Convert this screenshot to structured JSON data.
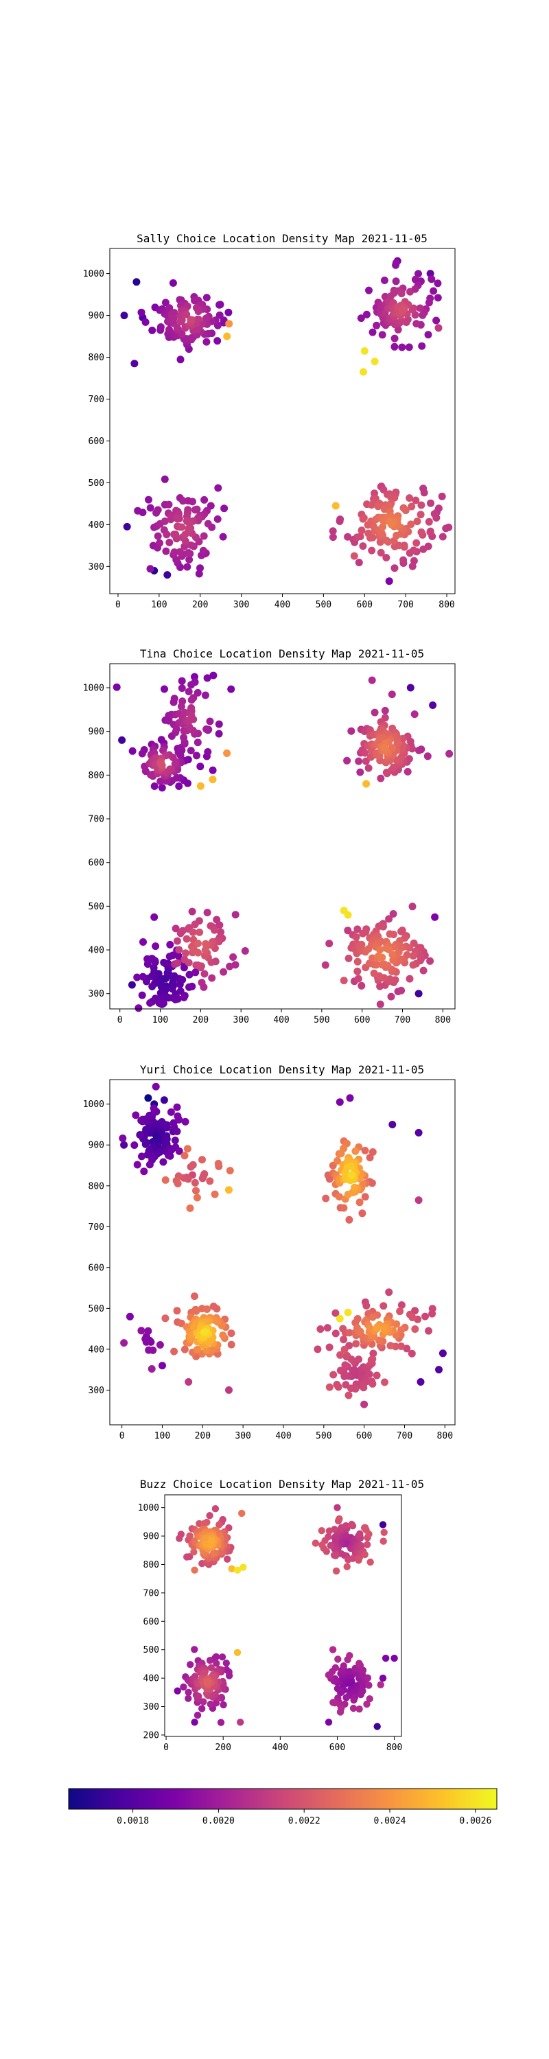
{
  "chart_data": [
    {
      "type": "scatter",
      "title": "Sally Choice Location Density Map 2021-11-05",
      "xlabel": "",
      "ylabel": "",
      "xlim": [
        -20,
        820
      ],
      "ylim": [
        235,
        1060
      ],
      "xticks": [
        0,
        100,
        200,
        300,
        400,
        500,
        600,
        700,
        800
      ],
      "yticks": [
        300,
        400,
        500,
        600,
        700,
        800,
        900,
        1000
      ],
      "grid": false,
      "clusters": [
        {
          "cx": 175,
          "cy": 890,
          "sx": 42,
          "sy": 38,
          "n": 110,
          "core": 0.00215,
          "edge": 0.0019,
          "seed": 11
        },
        {
          "cx": 690,
          "cy": 915,
          "sx": 38,
          "sy": 40,
          "n": 95,
          "core": 0.0022,
          "edge": 0.00195,
          "seed": 12
        },
        {
          "cx": 160,
          "cy": 390,
          "sx": 45,
          "sy": 45,
          "n": 100,
          "core": 0.00215,
          "edge": 0.00195,
          "seed": 13
        },
        {
          "cx": 665,
          "cy": 405,
          "sx": 52,
          "sy": 45,
          "n": 130,
          "core": 0.00235,
          "edge": 0.0021,
          "seed": 14
        }
      ],
      "points": [
        {
          "x": 15,
          "y": 900,
          "v": 0.00175
        },
        {
          "x": 45,
          "y": 980,
          "v": 0.0017
        },
        {
          "x": 40,
          "y": 785,
          "v": 0.0018
        },
        {
          "x": 60,
          "y": 895,
          "v": 0.0018
        },
        {
          "x": 88,
          "y": 290,
          "v": 0.0017
        },
        {
          "x": 120,
          "y": 280,
          "v": 0.00175
        },
        {
          "x": 22,
          "y": 395,
          "v": 0.00175
        },
        {
          "x": 600,
          "y": 815,
          "v": 0.0026
        },
        {
          "x": 597,
          "y": 765,
          "v": 0.0026
        },
        {
          "x": 625,
          "y": 790,
          "v": 0.0026
        },
        {
          "x": 680,
          "y": 1030,
          "v": 0.0019
        },
        {
          "x": 760,
          "y": 1000,
          "v": 0.00185
        },
        {
          "x": 660,
          "y": 265,
          "v": 0.0019
        },
        {
          "x": 575,
          "y": 325,
          "v": 0.0022
        },
        {
          "x": 530,
          "y": 445,
          "v": 0.0025
        },
        {
          "x": 270,
          "y": 880,
          "v": 0.0024
        },
        {
          "x": 265,
          "y": 850,
          "v": 0.0025
        },
        {
          "x": 780,
          "y": 870,
          "v": 0.0021
        }
      ]
    },
    {
      "type": "scatter",
      "title": "Tina Choice Location Density Map 2021-11-05",
      "xlabel": "",
      "ylabel": "",
      "xlim": [
        -25,
        830
      ],
      "ylim": [
        265,
        1055
      ],
      "xticks": [
        0,
        100,
        200,
        300,
        400,
        500,
        600,
        700,
        800
      ],
      "yticks": [
        300,
        400,
        500,
        600,
        700,
        800,
        900,
        1000
      ],
      "grid": false,
      "clusters": [
        {
          "cx": 105,
          "cy": 825,
          "sx": 30,
          "sy": 25,
          "n": 70,
          "core": 0.0022,
          "edge": 0.0019,
          "seed": 21
        },
        {
          "cx": 175,
          "cy": 930,
          "sx": 40,
          "sy": 50,
          "n": 70,
          "core": 0.0021,
          "edge": 0.0019,
          "seed": 22
        },
        {
          "cx": 660,
          "cy": 865,
          "sx": 38,
          "sy": 40,
          "n": 110,
          "core": 0.00235,
          "edge": 0.00205,
          "seed": 23
        },
        {
          "cx": 110,
          "cy": 330,
          "sx": 35,
          "sy": 35,
          "n": 85,
          "core": 0.00175,
          "edge": 0.0019,
          "seed": 24
        },
        {
          "cx": 200,
          "cy": 410,
          "sx": 40,
          "sy": 40,
          "n": 60,
          "core": 0.00225,
          "edge": 0.00205,
          "seed": 25
        },
        {
          "cx": 655,
          "cy": 390,
          "sx": 55,
          "sy": 40,
          "n": 130,
          "core": 0.00235,
          "edge": 0.0021,
          "seed": 26
        }
      ],
      "points": [
        {
          "x": 5,
          "y": 880,
          "v": 0.00175
        },
        {
          "x": 30,
          "y": 320,
          "v": 0.00175
        },
        {
          "x": 85,
          "y": 475,
          "v": 0.0019
        },
        {
          "x": 200,
          "y": 775,
          "v": 0.0025
        },
        {
          "x": 230,
          "y": 790,
          "v": 0.0025
        },
        {
          "x": 265,
          "y": 850,
          "v": 0.0024
        },
        {
          "x": 555,
          "y": 490,
          "v": 0.0026
        },
        {
          "x": 565,
          "y": 480,
          "v": 0.0026
        },
        {
          "x": 555,
          "y": 330,
          "v": 0.0022
        },
        {
          "x": 740,
          "y": 300,
          "v": 0.00175
        },
        {
          "x": 780,
          "y": 475,
          "v": 0.0019
        },
        {
          "x": 775,
          "y": 960,
          "v": 0.0018
        },
        {
          "x": 720,
          "y": 1000,
          "v": 0.0018
        },
        {
          "x": 610,
          "y": 780,
          "v": 0.0025
        },
        {
          "x": 185,
          "y": 1025,
          "v": 0.0019
        }
      ]
    },
    {
      "type": "scatter",
      "title": "Yuri Choice Location Density Map 2021-11-05",
      "xlabel": "",
      "ylabel": "",
      "xlim": [
        -30,
        825
      ],
      "ylim": [
        215,
        1060
      ],
      "xticks": [
        0,
        100,
        200,
        300,
        400,
        500,
        600,
        700,
        800
      ],
      "yticks": [
        300,
        400,
        500,
        600,
        700,
        800,
        900,
        1000
      ],
      "grid": false,
      "clusters": [
        {
          "cx": 85,
          "cy": 920,
          "sx": 30,
          "sy": 35,
          "n": 100,
          "core": 0.0017,
          "edge": 0.0019,
          "seed": 31
        },
        {
          "cx": 180,
          "cy": 830,
          "sx": 40,
          "sy": 25,
          "n": 25,
          "core": 0.00215,
          "edge": 0.0023,
          "seed": 32
        },
        {
          "cx": 565,
          "cy": 830,
          "sx": 22,
          "sy": 45,
          "n": 80,
          "core": 0.0026,
          "edge": 0.00225,
          "seed": 33
        },
        {
          "cx": 70,
          "cy": 425,
          "sx": 25,
          "sy": 30,
          "n": 12,
          "core": 0.0019,
          "edge": 0.002,
          "seed": 34
        },
        {
          "cx": 205,
          "cy": 440,
          "sx": 30,
          "sy": 30,
          "n": 90,
          "core": 0.0026,
          "edge": 0.00225,
          "seed": 35
        },
        {
          "cx": 640,
          "cy": 450,
          "sx": 50,
          "sy": 28,
          "n": 90,
          "core": 0.00245,
          "edge": 0.00215,
          "seed": 36
        },
        {
          "cx": 580,
          "cy": 340,
          "sx": 35,
          "sy": 30,
          "n": 60,
          "core": 0.0021,
          "edge": 0.0022,
          "seed": 37
        }
      ],
      "points": [
        {
          "x": 5,
          "y": 900,
          "v": 0.0018
        },
        {
          "x": 65,
          "y": 1015,
          "v": 0.00165
        },
        {
          "x": 80,
          "y": 1000,
          "v": 0.0017
        },
        {
          "x": 105,
          "y": 1010,
          "v": 0.00175
        },
        {
          "x": 20,
          "y": 480,
          "v": 0.0019
        },
        {
          "x": 100,
          "y": 360,
          "v": 0.0019
        },
        {
          "x": 265,
          "y": 790,
          "v": 0.0025
        },
        {
          "x": 540,
          "y": 1005,
          "v": 0.0019
        },
        {
          "x": 565,
          "y": 1015,
          "v": 0.0019
        },
        {
          "x": 670,
          "y": 950,
          "v": 0.0018
        },
        {
          "x": 735,
          "y": 930,
          "v": 0.0018
        },
        {
          "x": 735,
          "y": 765,
          "v": 0.0021
        },
        {
          "x": 560,
          "y": 490,
          "v": 0.0026
        },
        {
          "x": 540,
          "y": 475,
          "v": 0.0026
        },
        {
          "x": 795,
          "y": 390,
          "v": 0.0018
        },
        {
          "x": 785,
          "y": 350,
          "v": 0.0018
        },
        {
          "x": 740,
          "y": 320,
          "v": 0.0018
        },
        {
          "x": 600,
          "y": 265,
          "v": 0.0021
        },
        {
          "x": 265,
          "y": 300,
          "v": 0.0021
        },
        {
          "x": 165,
          "y": 320,
          "v": 0.0021
        }
      ]
    },
    {
      "type": "scatter",
      "title": "Buzz Choice Location Density Map 2021-11-05",
      "xlabel": "",
      "ylabel": "",
      "xlim": [
        -5,
        825
      ],
      "ylim": [
        195,
        1045
      ],
      "xticks": [
        0,
        200,
        400,
        600,
        800
      ],
      "yticks": [
        200,
        300,
        400,
        500,
        600,
        700,
        800,
        900,
        1000
      ],
      "grid": false,
      "clusters": [
        {
          "cx": 150,
          "cy": 880,
          "sx": 38,
          "sy": 38,
          "n": 110,
          "core": 0.0025,
          "edge": 0.00215,
          "seed": 41
        },
        {
          "cx": 630,
          "cy": 880,
          "sx": 40,
          "sy": 38,
          "n": 100,
          "core": 0.002,
          "edge": 0.0022,
          "seed": 42
        },
        {
          "cx": 145,
          "cy": 385,
          "sx": 35,
          "sy": 40,
          "n": 100,
          "core": 0.00225,
          "edge": 0.002,
          "seed": 43
        },
        {
          "cx": 640,
          "cy": 380,
          "sx": 40,
          "sy": 40,
          "n": 90,
          "core": 0.0019,
          "edge": 0.00205,
          "seed": 44
        }
      ],
      "points": [
        {
          "x": 265,
          "y": 980,
          "v": 0.0023
        },
        {
          "x": 250,
          "y": 780,
          "v": 0.0026
        },
        {
          "x": 270,
          "y": 790,
          "v": 0.0026
        },
        {
          "x": 230,
          "y": 785,
          "v": 0.0025
        },
        {
          "x": 100,
          "y": 780,
          "v": 0.0023
        },
        {
          "x": 600,
          "y": 1000,
          "v": 0.0021
        },
        {
          "x": 760,
          "y": 940,
          "v": 0.00175
        },
        {
          "x": 800,
          "y": 470,
          "v": 0.0019
        },
        {
          "x": 770,
          "y": 470,
          "v": 0.0019
        },
        {
          "x": 760,
          "y": 400,
          "v": 0.0019
        },
        {
          "x": 740,
          "y": 230,
          "v": 0.00175
        },
        {
          "x": 570,
          "y": 245,
          "v": 0.0019
        },
        {
          "x": 250,
          "y": 490,
          "v": 0.0025
        },
        {
          "x": 260,
          "y": 245,
          "v": 0.0021
        },
        {
          "x": 100,
          "y": 245,
          "v": 0.0019
        },
        {
          "x": 40,
          "y": 355,
          "v": 0.0019
        }
      ]
    }
  ],
  "colorbar": {
    "colormap": "plasma",
    "vmin": 0.00165,
    "vmax": 0.00265,
    "ticks": [
      0.0018,
      0.002,
      0.0022,
      0.0024,
      0.0026
    ],
    "tick_labels": [
      "0.0018",
      "0.0020",
      "0.0022",
      "0.0024",
      "0.0026"
    ]
  }
}
